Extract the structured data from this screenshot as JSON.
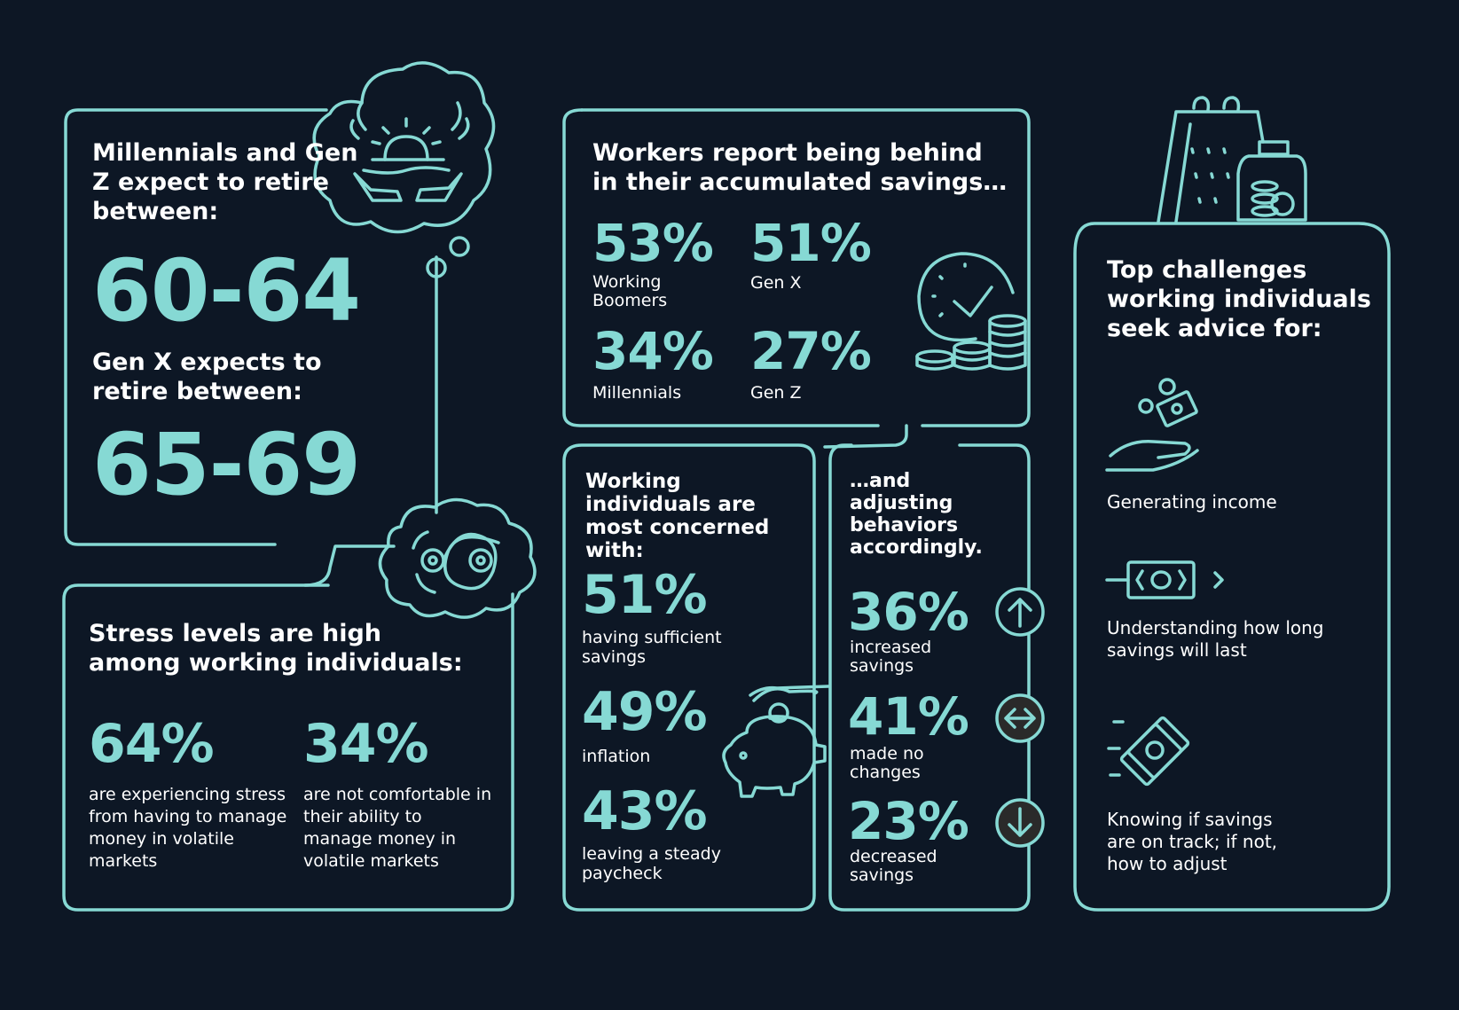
{
  "colors": {
    "background": "#0d1725",
    "accent": "#86d9d4",
    "text": "#ffffff"
  },
  "retire": {
    "heading1": "Millennials and Gen Z expect to retire between:",
    "range1": "60-64",
    "heading2": "Gen X expects to retire between:",
    "range2": "65-69",
    "icons": [
      "beach-sunset-thought-icon",
      "tangled-thoughts-icon"
    ]
  },
  "stress": {
    "heading": "Stress levels are high among working individuals:",
    "stats": [
      {
        "value": "64%",
        "label": "are experiencing stress from having to manage money in volatile markets"
      },
      {
        "value": "34%",
        "label": "are not comfortable in their ability to manage money in volatile markets"
      }
    ]
  },
  "savings": {
    "heading": "Workers report being behind in their accumulated savings…",
    "stats": [
      {
        "value": "53%",
        "label": "Working Boomers"
      },
      {
        "value": "51%",
        "label": "Gen X"
      },
      {
        "value": "34%",
        "label": "Millennials"
      },
      {
        "value": "27%",
        "label": "Gen Z"
      }
    ],
    "icon": "clock-coins-icon"
  },
  "concerns": {
    "heading": "Working individuals are most concerned with:",
    "stats": [
      {
        "value": "51%",
        "label": "having sufficient savings"
      },
      {
        "value": "49%",
        "label": "inflation"
      },
      {
        "value": "43%",
        "label": "leaving a steady paycheck"
      }
    ],
    "icon": "piggy-bank-icon"
  },
  "behaviors": {
    "heading": "…and adjusting behaviors accordingly.",
    "stats": [
      {
        "value": "36%",
        "label": "increased savings",
        "icon": "arrow-up-icon"
      },
      {
        "value": "41%",
        "label": "made no changes",
        "icon": "arrow-both-icon"
      },
      {
        "value": "23%",
        "label": "decreased savings",
        "icon": "arrow-down-icon"
      }
    ]
  },
  "challenges": {
    "heading": "Top challenges working individuals seek advice for:",
    "items": [
      {
        "label": "Generating income",
        "icon": "hand-money-icon"
      },
      {
        "label": "Understanding how long savings will last",
        "icon": "money-bill-arrow-icon"
      },
      {
        "label": "Knowing if savings are on track; if not, how to adjust",
        "icon": "moving-bills-icon"
      }
    ],
    "top_icon": "calendar-jar-icon"
  }
}
